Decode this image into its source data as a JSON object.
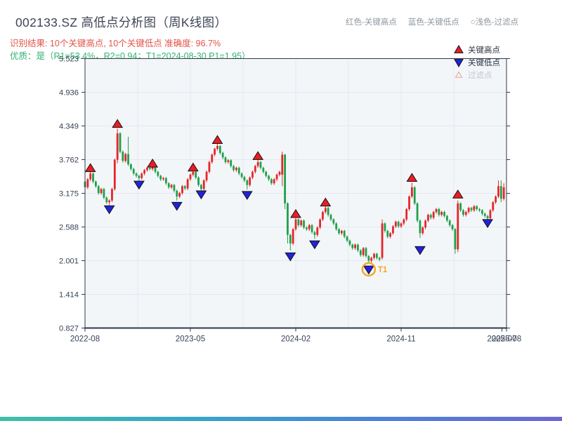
{
  "header": {
    "title": "002133.SZ 高低点分析图（周K线图）",
    "legend_hint": {
      "high": "红色-关键高点",
      "low": "蓝色-关键低点",
      "filtered": "○浅色-过滤点"
    },
    "result_line": "识别结果: 10个关键高点, 10个关键低点  准确度: 96.7%",
    "quality_line": "优质：是（R1=53.4%，R2=0.94；T1=2024-08-30 P1=1.95）"
  },
  "colors": {
    "up_candle": "#e52528",
    "down_candle": "#1fa049",
    "key_high_marker": "#ed1c24",
    "key_low_marker": "#2222dd",
    "marker_edge": "#111111",
    "filtered_marker_fill": "#fdf0f0",
    "filtered_marker_edge": "#e0a3a3",
    "filtered_text": "#c3c9cf",
    "legend_text": "#2b3442",
    "t1_orange": "#f5a623",
    "grid": "#e4e8ed",
    "axis": "#2f3b4c",
    "tick_label": "#364258",
    "plot_bg": "#f3f6f9",
    "title_text": "#3d4554",
    "result_text": "#e25449",
    "quality_text": "#33b273",
    "hint_text": "#8d98a1",
    "accent_bar": [
      "#3ec1a7",
      "#35a8c9",
      "#4b84d8",
      "#6d68d2"
    ]
  },
  "chart_data": {
    "type": "candlestick",
    "title": "002133.SZ 高低点分析图（周K线图）",
    "xlabel": "",
    "ylabel": "",
    "ylim": [
      0.827,
      5.523
    ],
    "grid": true,
    "y_ticks": [
      5.523,
      4.936,
      4.349,
      3.762,
      3.175,
      2.588,
      2.001,
      1.414,
      0.827
    ],
    "x_ticks": [
      {
        "label": "2022-08",
        "week": 0
      },
      {
        "label": "2023-05",
        "week": 39
      },
      {
        "label": "2024-02",
        "week": 78
      },
      {
        "label": "2024-11",
        "week": 117
      },
      {
        "label": "2025-07",
        "week": 154.3
      },
      {
        "label": "2025-08",
        "week": 156
      }
    ],
    "minor_grid_weeks": [
      19.5,
      58.5,
      97.5,
      136.5
    ],
    "major_grid_weeks": [
      0,
      39,
      78,
      117,
      156
    ],
    "weeks": 156,
    "first_open": 3.38,
    "closes": [
      3.28,
      3.42,
      3.52,
      3.38,
      3.3,
      3.18,
      3.25,
      3.1,
      3.02,
      3.05,
      3.25,
      3.76,
      4.22,
      3.9,
      3.74,
      3.86,
      3.68,
      3.6,
      3.52,
      3.48,
      3.44,
      3.52,
      3.58,
      3.62,
      3.6,
      3.63,
      3.55,
      3.48,
      3.42,
      3.44,
      3.35,
      3.28,
      3.32,
      3.22,
      3.12,
      3.18,
      3.3,
      3.26,
      3.42,
      3.5,
      3.55,
      3.45,
      3.32,
      3.25,
      3.4,
      3.55,
      3.72,
      3.85,
      3.95,
      4.0,
      3.88,
      3.8,
      3.72,
      3.75,
      3.65,
      3.58,
      3.62,
      3.52,
      3.46,
      3.4,
      3.32,
      3.45,
      3.55,
      3.65,
      3.72,
      3.62,
      3.55,
      3.48,
      3.42,
      3.35,
      3.42,
      3.5,
      3.55,
      3.85,
      3.0,
      2.45,
      2.3,
      2.55,
      2.72,
      2.62,
      2.7,
      2.58,
      2.55,
      2.62,
      2.5,
      2.45,
      2.58,
      2.72,
      2.85,
      2.92,
      2.8,
      2.72,
      2.65,
      2.55,
      2.48,
      2.52,
      2.42,
      2.35,
      2.28,
      2.22,
      2.28,
      2.18,
      2.1,
      2.22,
      2.08,
      2.0,
      2.05,
      2.12,
      2.05,
      2.02,
      2.65,
      2.52,
      2.42,
      2.48,
      2.6,
      2.68,
      2.6,
      2.65,
      2.72,
      2.9,
      3.12,
      3.28,
      3.0,
      2.7,
      2.48,
      2.58,
      2.7,
      2.8,
      2.75,
      2.85,
      2.9,
      2.8,
      2.85,
      2.78,
      2.7,
      2.62,
      2.55,
      2.2,
      3.0,
      2.88,
      2.8,
      2.85,
      2.92,
      2.88,
      2.95,
      2.9,
      2.88,
      2.82,
      2.78,
      2.74,
      2.88,
      3.02,
      3.12,
      3.3,
      3.08,
      3.28
    ],
    "overrides": {
      "2": {
        "h": 3.58
      },
      "9": {
        "l": 2.97
      },
      "12": {
        "h": 4.3,
        "l": 3.7
      },
      "16": {
        "h": 4.16
      },
      "20": {
        "l": 3.39
      },
      "25": {
        "h": 3.66
      },
      "34": {
        "l": 3.05
      },
      "40": {
        "h": 3.6
      },
      "43": {
        "l": 3.2
      },
      "49": {
        "h": 4.06
      },
      "60": {
        "l": 3.24
      },
      "64": {
        "h": 3.78
      },
      "73": {
        "o": 3.5,
        "h": 3.9,
        "l": 3.3
      },
      "74": {
        "h": 3.86,
        "l": 2.9
      },
      "75": {
        "l": 2.3
      },
      "76": {
        "l": 2.18
      },
      "78": {
        "h": 2.78
      },
      "85": {
        "l": 2.38
      },
      "89": {
        "h": 2.96
      },
      "105": {
        "l": 1.95
      },
      "110": {
        "o": 2.05,
        "h": 2.72
      },
      "121": {
        "h": 3.36
      },
      "124": {
        "l": 2.4
      },
      "137": {
        "l": 2.12
      },
      "138": {
        "o": 2.2,
        "l": 2.15,
        "h": 3.05
      },
      "149": {
        "l": 2.7
      },
      "153": {
        "h": 3.4
      },
      "154": {
        "h": 3.4,
        "l": 3.02
      },
      "155": {
        "h": 3.35
      }
    },
    "key_highs": [
      {
        "week": 2,
        "price": 3.61
      },
      {
        "week": 12,
        "price": 4.38
      },
      {
        "week": 25,
        "price": 3.69
      },
      {
        "week": 40,
        "price": 3.62
      },
      {
        "week": 49,
        "price": 4.1
      },
      {
        "week": 64,
        "price": 3.82
      },
      {
        "week": 78,
        "price": 2.81
      },
      {
        "week": 89,
        "price": 3.01
      },
      {
        "week": 121,
        "price": 3.44
      },
      {
        "week": 138,
        "price": 3.15
      }
    ],
    "key_lows": [
      {
        "week": 9,
        "price": 2.9
      },
      {
        "week": 20,
        "price": 3.33
      },
      {
        "week": 34,
        "price": 2.96
      },
      {
        "week": 43,
        "price": 3.16
      },
      {
        "week": 60,
        "price": 3.15
      },
      {
        "week": 76,
        "price": 2.08
      },
      {
        "week": 85,
        "price": 2.29
      },
      {
        "week": 105,
        "price": 1.85
      },
      {
        "week": 124,
        "price": 2.19
      },
      {
        "week": 149,
        "price": 2.66
      }
    ],
    "t1_annotation": {
      "week": 105,
      "price": 1.85,
      "label": "T1"
    },
    "legend": [
      {
        "label": "关键高点",
        "marker": "triangle-up"
      },
      {
        "label": "关键低点",
        "marker": "triangle-down"
      },
      {
        "label": "过滤点",
        "marker": "triangle-up-hollow"
      }
    ],
    "legend_position": "top-right"
  }
}
